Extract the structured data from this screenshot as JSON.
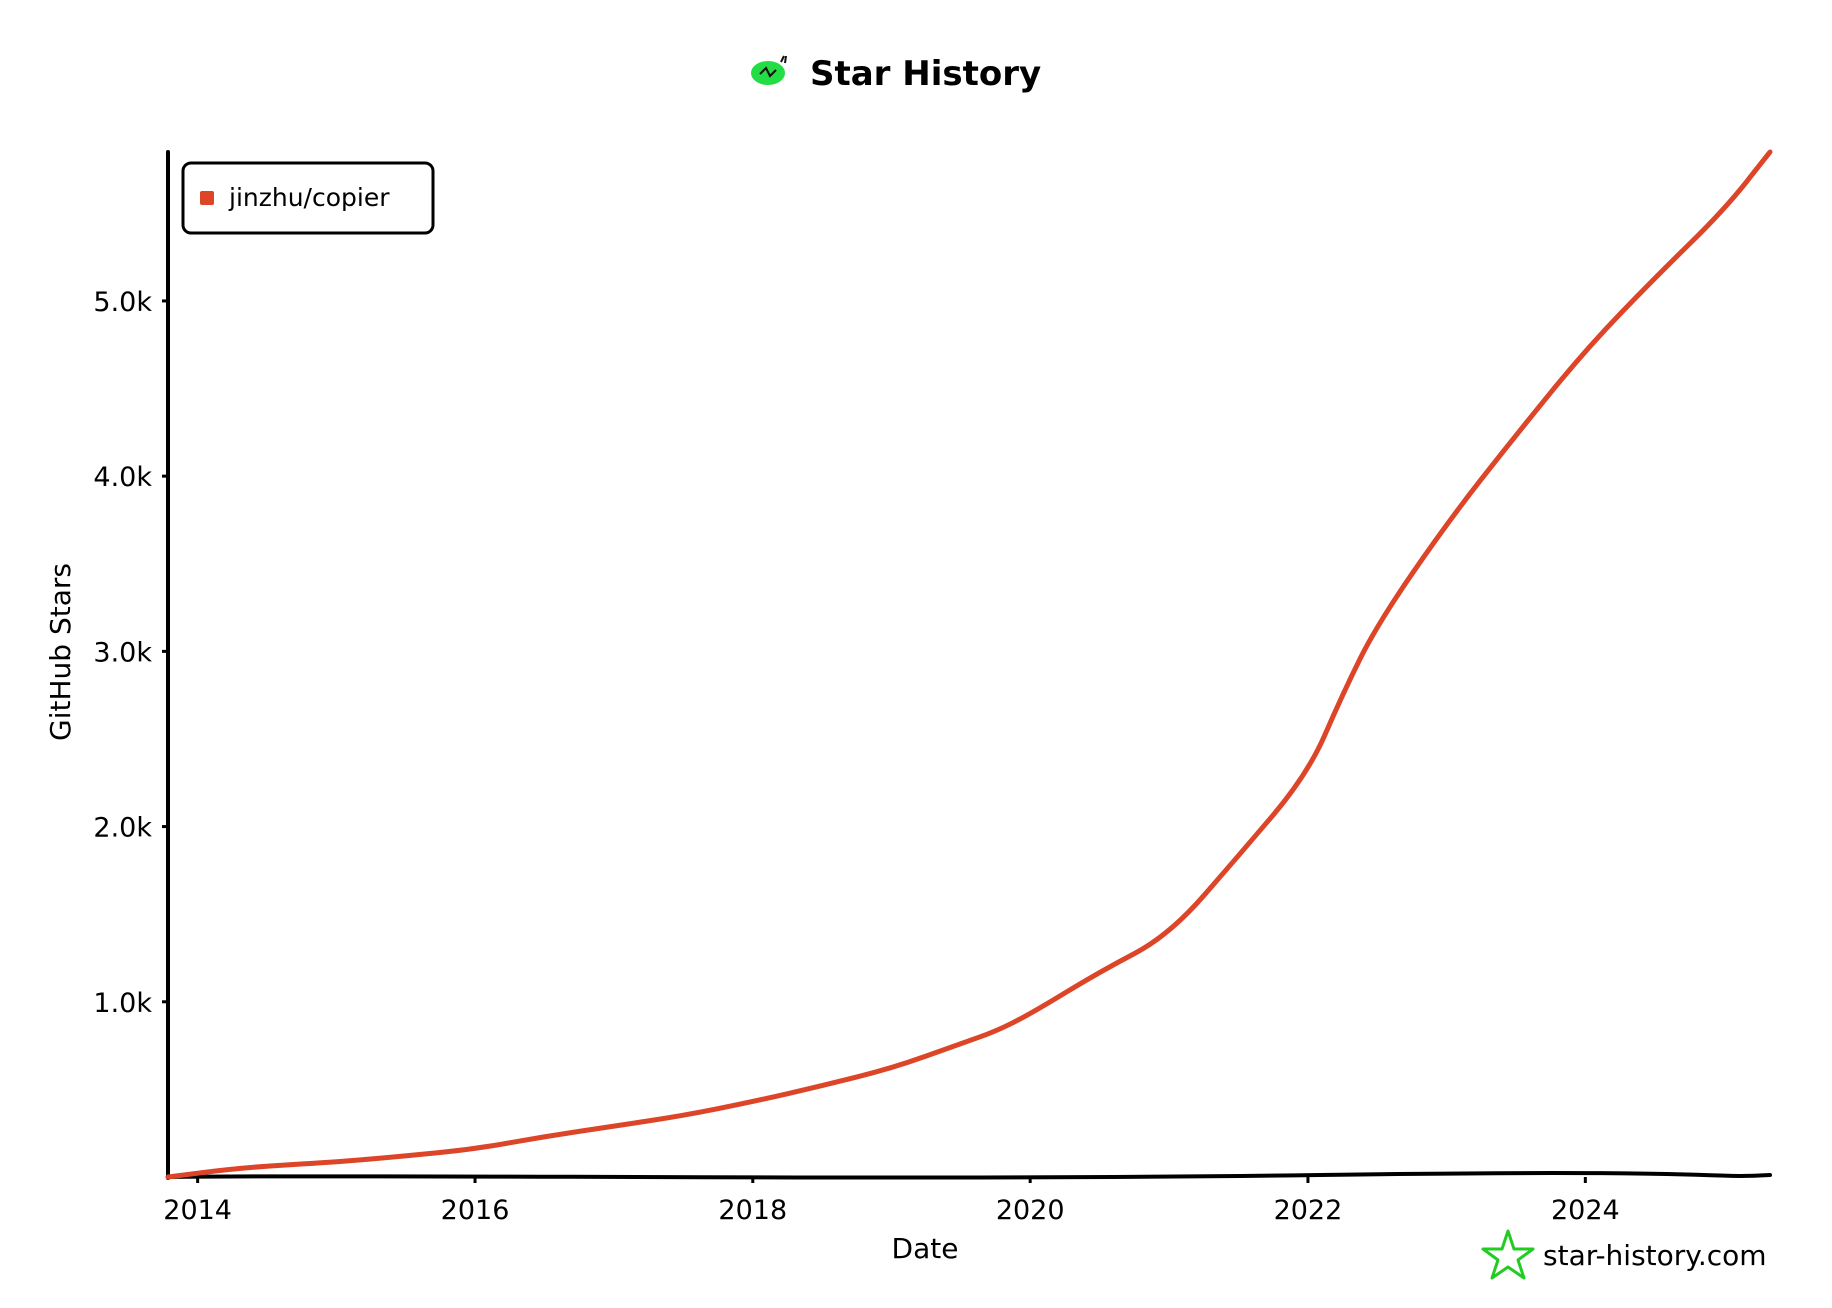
{
  "chart_data": {
    "type": "line",
    "title": "Star History",
    "xlabel": "Date",
    "ylabel": "GitHub Stars",
    "x_ticks": [
      "2014",
      "2016",
      "2018",
      "2020",
      "2022",
      "2024"
    ],
    "y_ticks": [
      "1.0k",
      "2.0k",
      "3.0k",
      "4.0k",
      "5.0k"
    ],
    "xlim": [
      "2013-10-15",
      "2025-05-01"
    ],
    "ylim": [
      0,
      5850
    ],
    "grid": false,
    "legend_position": "top-left",
    "series": [
      {
        "name": "jinzhu/copier",
        "color": "#dd4528",
        "points": [
          [
            "2013-10-15",
            0
          ],
          [
            "2014-05-01",
            55
          ],
          [
            "2015-01-01",
            85
          ],
          [
            "2015-07-01",
            120
          ],
          [
            "2016-01-01",
            160
          ],
          [
            "2016-07-01",
            230
          ],
          [
            "2017-01-01",
            290
          ],
          [
            "2017-07-01",
            350
          ],
          [
            "2018-01-01",
            430
          ],
          [
            "2018-07-01",
            520
          ],
          [
            "2019-01-01",
            620
          ],
          [
            "2019-07-01",
            760
          ],
          [
            "2019-10-01",
            830
          ],
          [
            "2020-01-01",
            930
          ],
          [
            "2020-07-01",
            1170
          ],
          [
            "2021-01-01",
            1380
          ],
          [
            "2021-07-01",
            1830
          ],
          [
            "2022-01-01",
            2300
          ],
          [
            "2022-04-01",
            2750
          ],
          [
            "2022-07-01",
            3150
          ],
          [
            "2023-01-01",
            3730
          ],
          [
            "2023-07-01",
            4230
          ],
          [
            "2024-01-01",
            4720
          ],
          [
            "2024-07-01",
            5130
          ],
          [
            "2025-01-01",
            5520
          ],
          [
            "2025-05-01",
            5850
          ]
        ]
      }
    ]
  },
  "watermark": "star-history.com",
  "colors": {
    "series": "#dd4528",
    "axis": "#000000",
    "logo_green": "#22dd44",
    "star_green": "#22cc22"
  },
  "icons": {
    "title_logo": "star-history-logo-icon",
    "watermark": "star-outline-icon"
  }
}
